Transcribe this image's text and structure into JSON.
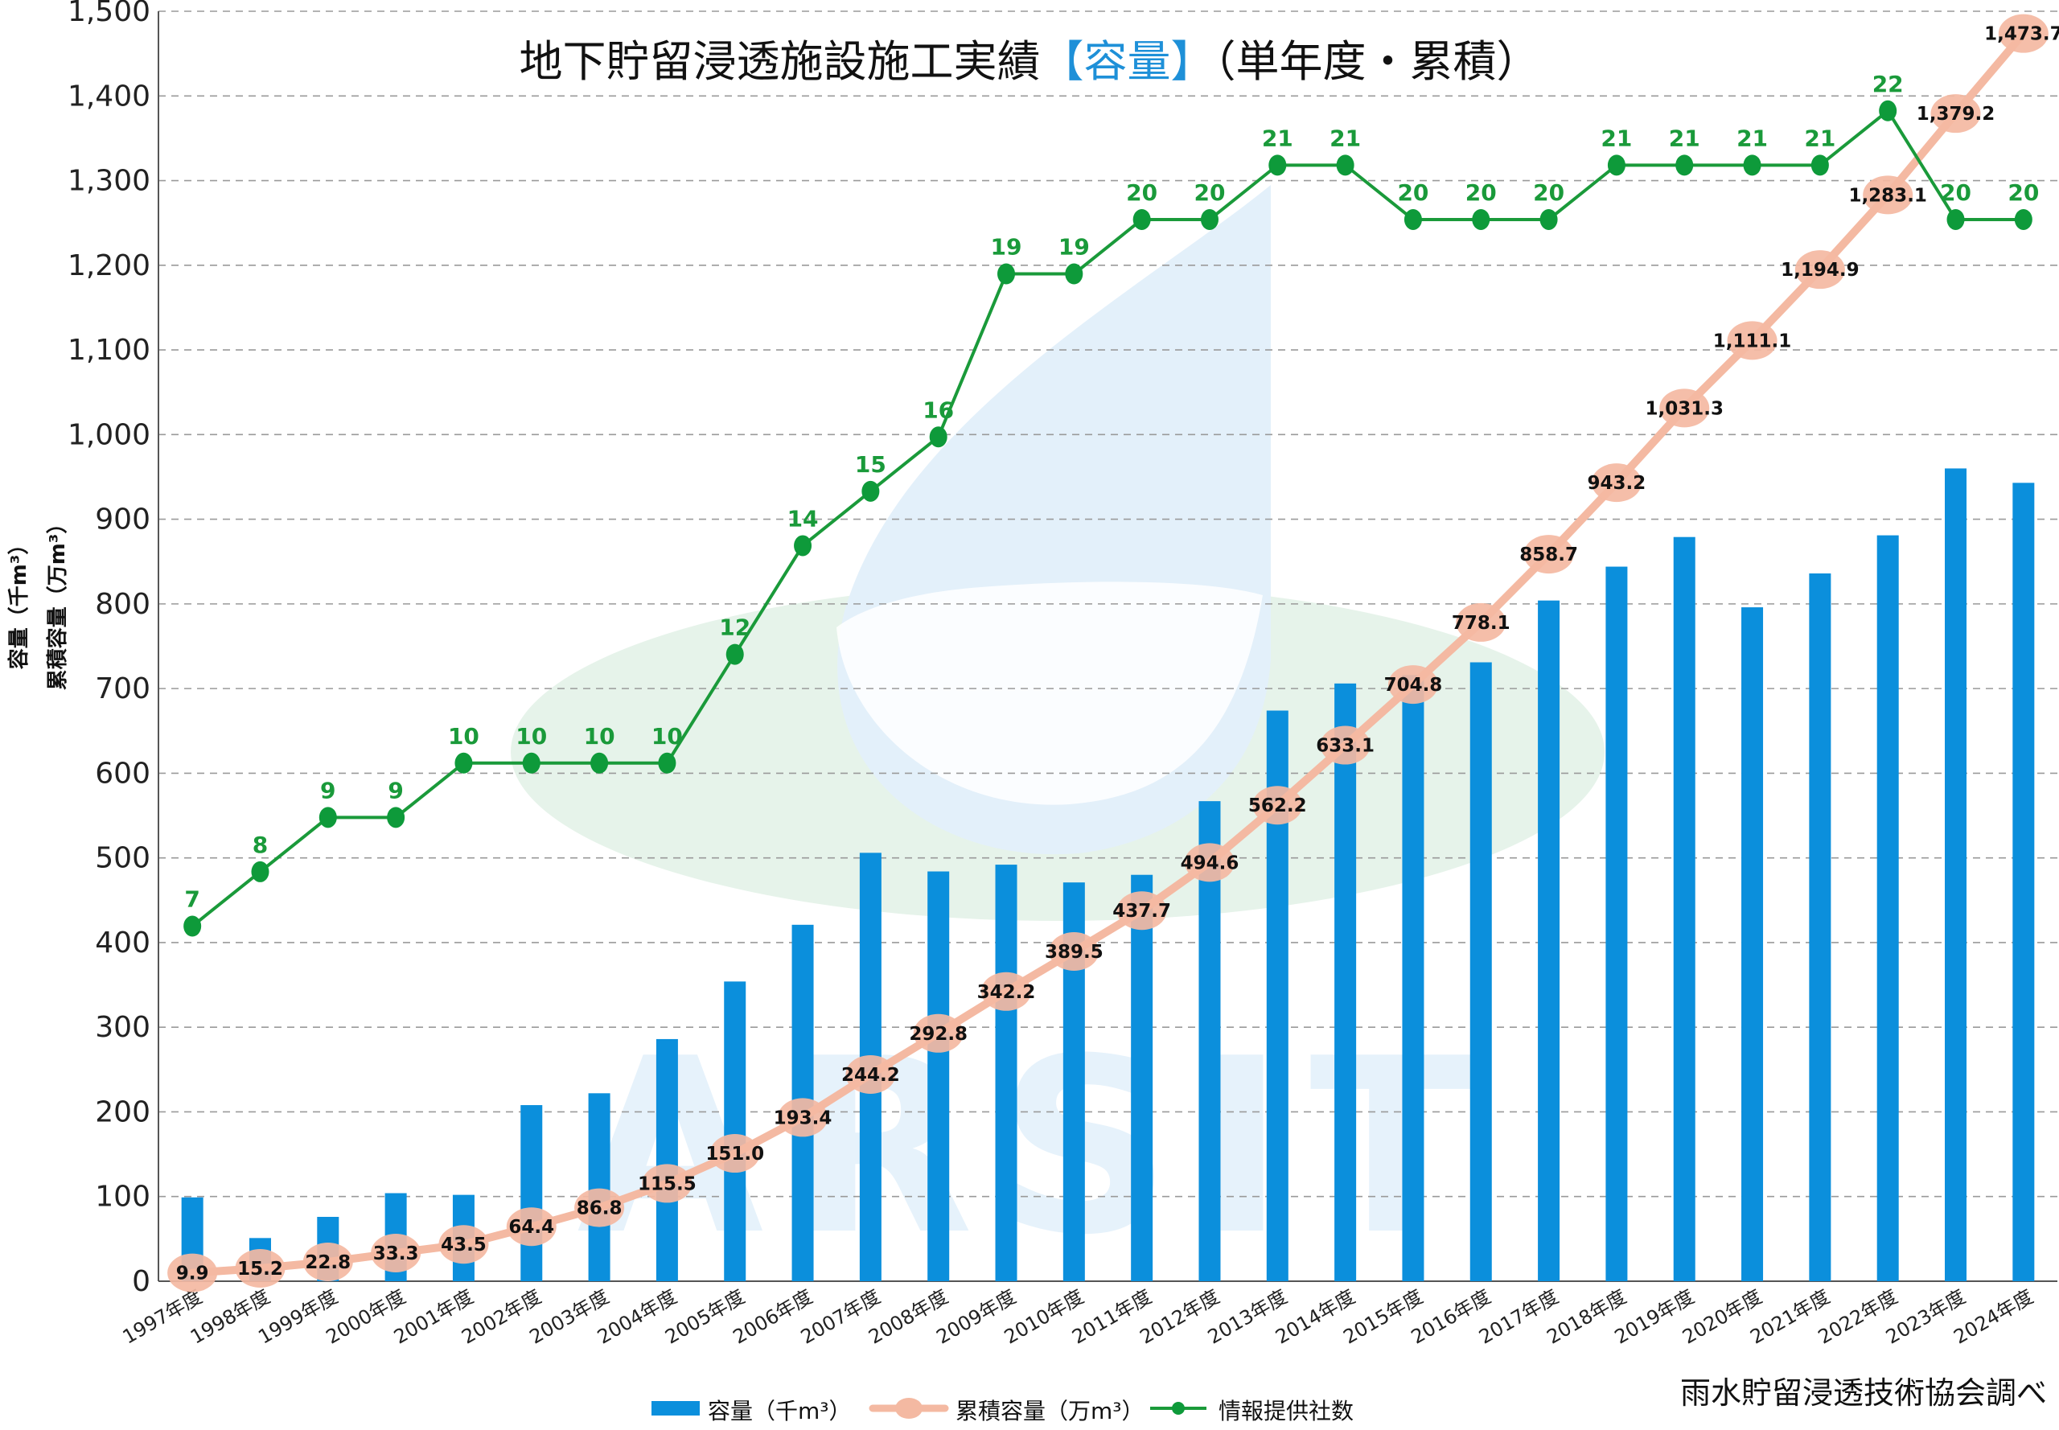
{
  "title": {
    "main": "地下貯留浸透施設施工実績",
    "highlight": "【容量】",
    "suffix": "（単年度・累積）",
    "highlight_color": "#1e90d8"
  },
  "watermark": {
    "text": "ARSIT"
  },
  "y_axis_labels": [
    "容量（千m³）",
    "累積容量（万m³）"
  ],
  "source": "雨水貯留浸透技術協会調べ",
  "colors": {
    "bar": "#0b8fdc",
    "cumulative_line": "#f4b9a2",
    "count_line": "#1a9a3a",
    "count_marker": "#0e9a3a",
    "count_label": "#1a9a3a"
  },
  "chart_data": {
    "type": "bar",
    "ylim": [
      0,
      1500
    ],
    "yticks": [
      0,
      100,
      200,
      300,
      400,
      500,
      600,
      700,
      800,
      900,
      1000,
      1100,
      1200,
      1300,
      1400,
      1500
    ],
    "ytick_labels": [
      "0",
      "100",
      "200",
      "300",
      "400",
      "500",
      "600",
      "700",
      "800",
      "900",
      "1,000",
      "1,100",
      "1,200",
      "1,300",
      "1,400",
      "1,500"
    ],
    "grid": true,
    "legend_position": "bottom",
    "categories": [
      "1997年度",
      "1998年度",
      "1999年度",
      "2000年度",
      "2001年度",
      "2002年度",
      "2003年度",
      "2004年度",
      "2005年度",
      "2006年度",
      "2007年度",
      "2008年度",
      "2009年度",
      "2010年度",
      "2011年度",
      "2012年度",
      "2013年度",
      "2014年度",
      "2015年度",
      "2016年度",
      "2017年度",
      "2018年度",
      "2019年度",
      "2020年度",
      "2021年度",
      "2022年度",
      "2023年度",
      "2024年度"
    ],
    "series": [
      {
        "name": "容量（千m³）",
        "kind": "bar",
        "values": [
          99,
          51,
          76,
          104,
          102,
          208,
          222,
          286,
          354,
          421,
          506,
          484,
          492,
          471,
          480,
          567,
          674,
          706,
          716,
          731,
          804,
          844,
          879,
          796,
          836,
          881,
          960,
          943
        ]
      },
      {
        "name": "累積容量（万m³）",
        "kind": "line",
        "values": [
          9.9,
          15.2,
          22.8,
          33.3,
          43.5,
          64.4,
          86.8,
          115.5,
          151.0,
          193.4,
          244.2,
          292.8,
          342.2,
          389.5,
          437.7,
          494.6,
          562.2,
          633.1,
          704.8,
          778.1,
          858.7,
          943.2,
          1031.3,
          1111.1,
          1194.9,
          1283.1,
          1379.2,
          1473.7
        ],
        "labels": [
          "9.9",
          "15.2",
          "22.8",
          "33.3",
          "43.5",
          "64.4",
          "86.8",
          "115.5",
          "151.0",
          "193.4",
          "244.2",
          "292.8",
          "342.2",
          "389.5",
          "437.7",
          "494.6",
          "562.2",
          "633.1",
          "704.8",
          "778.1",
          "858.7",
          "943.2",
          "1,031.3",
          "1,111.1",
          "1,194.9",
          "1,283.1",
          "1,379.2",
          "1,473.7"
        ]
      },
      {
        "name": "情報提供社数",
        "kind": "line",
        "values": [
          7,
          8,
          9,
          9,
          10,
          10,
          10,
          10,
          12,
          14,
          15,
          16,
          19,
          19,
          20,
          20,
          21,
          21,
          20,
          20,
          20,
          21,
          21,
          21,
          21,
          22,
          20,
          20
        ],
        "labels": [
          "7",
          "8",
          "9",
          "9",
          "10",
          "10",
          "10",
          "10",
          "12",
          "14",
          "15",
          "16",
          "19",
          "19",
          "20",
          "20",
          "21",
          "21",
          "20",
          "20",
          "20",
          "21",
          "21",
          "21",
          "21",
          "22",
          "20",
          "20"
        ]
      }
    ]
  }
}
